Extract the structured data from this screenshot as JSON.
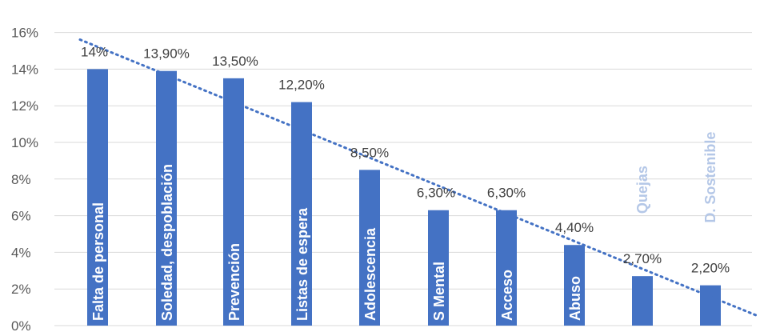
{
  "colors": {
    "bar": "#4472c4",
    "gridline": "#d9d9d9",
    "trendline": "#4472c4",
    "outside_label": "#b4c7e7"
  },
  "chart_data": {
    "type": "bar",
    "categories": [
      "Falta de personal",
      "Soledad, despoblación",
      "Prevención",
      "Listas de espera",
      "Adolescencia",
      "S Mental",
      "Acceso",
      "Abuso",
      "Quejas",
      "D. Sostenible"
    ],
    "values": [
      14,
      13.9,
      13.5,
      12.2,
      8.5,
      6.3,
      6.3,
      4.4,
      2.7,
      2.2
    ],
    "data_labels": [
      "14%",
      "13,90%",
      "13,50%",
      "12,20%",
      "8,50%",
      "6,30%",
      "6,30%",
      "4,40%",
      "2,70%",
      "2,20%"
    ],
    "category_label_position": [
      "inside",
      "inside",
      "inside",
      "inside",
      "inside",
      "inside",
      "inside",
      "inside",
      "above",
      "above"
    ],
    "yticks": [
      0,
      2,
      4,
      6,
      8,
      10,
      12,
      14,
      16
    ],
    "ytick_labels": [
      "0%",
      "2%",
      "4%",
      "6%",
      "8%",
      "10%",
      "12%",
      "14%",
      "16%"
    ],
    "ylim": [
      0,
      16
    ],
    "trendline": {
      "type": "linear",
      "style": "dotted"
    },
    "grid": true,
    "title": "",
    "xlabel": "",
    "ylabel": ""
  }
}
